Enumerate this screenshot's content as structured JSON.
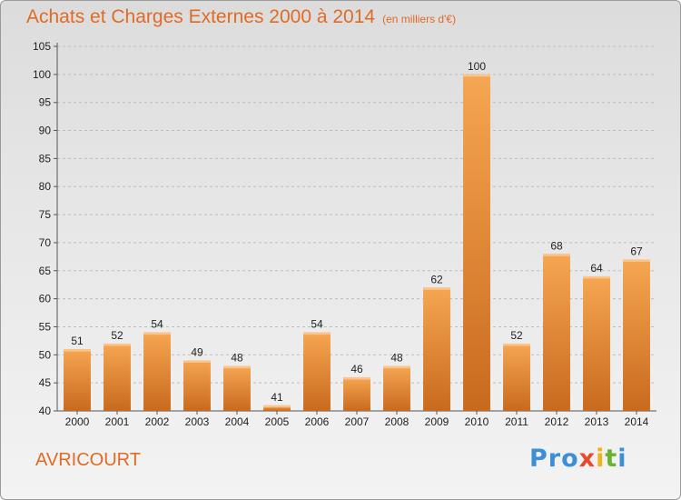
{
  "header": {
    "title": "Achats et Charges Externes 2000 à 2014",
    "subtitle": "(en milliers d'€)"
  },
  "footer": {
    "commune": "AVRICOURT",
    "logo_letters": [
      "Pro",
      "x",
      "i",
      "t",
      "i"
    ]
  },
  "colors": {
    "bar_light": "#f6a652",
    "bar_dark": "#c86a1e",
    "title": "#e06b24",
    "grid": "#bdbdbd"
  },
  "chart_data": {
    "type": "bar",
    "categories": [
      "2000",
      "2001",
      "2002",
      "2003",
      "2004",
      "2005",
      "2006",
      "2007",
      "2008",
      "2009",
      "2010",
      "2011",
      "2012",
      "2013",
      "2014"
    ],
    "values": [
      51,
      52,
      54,
      49,
      48,
      41,
      54,
      46,
      48,
      62,
      100,
      52,
      68,
      64,
      67
    ],
    "ylim": [
      40,
      105
    ],
    "yticks": [
      40,
      45,
      50,
      55,
      60,
      65,
      70,
      75,
      80,
      85,
      90,
      95,
      100,
      105
    ],
    "grid": "horizontal-dashed",
    "legend": "none",
    "title": "Achats et Charges Externes 2000 à 2014",
    "xlabel": "",
    "ylabel": ""
  }
}
